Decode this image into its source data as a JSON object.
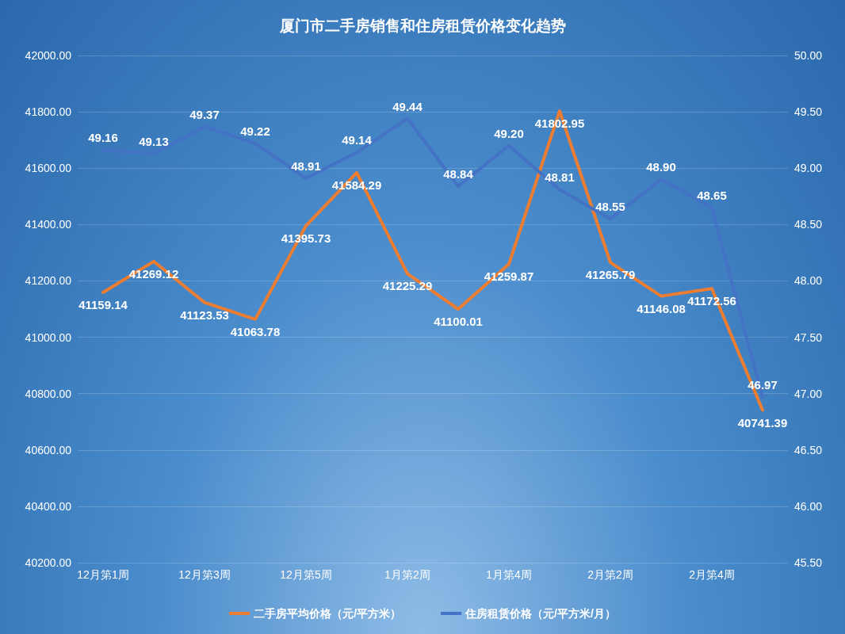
{
  "chart_data": {
    "type": "line",
    "title": "厦门市二手房销售和住房租赁价格变化趋势",
    "categories": [
      "12月第1周",
      null,
      "12月第3周",
      null,
      "12月第5周",
      null,
      "1月第2周",
      null,
      "1月第4周",
      null,
      "2月第2周",
      null,
      "2月第4周",
      null
    ],
    "series": [
      {
        "name": "二手房平均价格（元/平方米）",
        "color": "#ed7d31",
        "values": [
          41159.14,
          41269.12,
          41123.53,
          41063.78,
          41395.73,
          41584.29,
          41225.29,
          41100.01,
          41259.87,
          41802.95,
          41265.79,
          41146.08,
          41172.56,
          40741.39
        ],
        "value_labels": [
          "41159.14",
          "41269.12",
          "41123.53",
          "41063.78",
          "41395.73",
          "41584.29",
          "41225.29",
          "41100.01",
          "41259.87",
          "41802.95",
          "41265.79",
          "41146.08",
          "41172.56",
          "40741.39"
        ]
      },
      {
        "name": "住房租赁价格（元/平方米/月）",
        "color": "#4472c4",
        "axis": "y2",
        "values": [
          49.16,
          49.13,
          49.37,
          49.22,
          48.91,
          49.14,
          49.44,
          48.84,
          49.2,
          48.81,
          48.55,
          48.9,
          48.65,
          46.97
        ],
        "value_labels": [
          "49.16",
          "49.13",
          "49.37",
          "49.22",
          "48.91",
          "49.14",
          "49.44",
          "48.84",
          "49.20",
          "48.81",
          "48.55",
          "48.90",
          "48.65",
          "46.97"
        ]
      }
    ],
    "ylim": [
      40200,
      42000
    ],
    "yticks": [
      {
        "value": 40200,
        "label": "40200.00"
      },
      {
        "value": 40400,
        "label": "40400.00"
      },
      {
        "value": 40600,
        "label": "40600.00"
      },
      {
        "value": 40800,
        "label": "40800.00"
      },
      {
        "value": 41000,
        "label": "41000.00"
      },
      {
        "value": 41200,
        "label": "41200.00"
      },
      {
        "value": 41400,
        "label": "41400.00"
      },
      {
        "value": 41600,
        "label": "41600.00"
      },
      {
        "value": 41800,
        "label": "41800.00"
      },
      {
        "value": 42000,
        "label": "42000.00"
      }
    ],
    "y2lim": [
      45.5,
      50
    ],
    "y2ticks": [
      {
        "value": 45.5,
        "label": "45.50"
      },
      {
        "value": 46,
        "label": "46.00"
      },
      {
        "value": 46.5,
        "label": "46.50"
      },
      {
        "value": 47,
        "label": "47.00"
      },
      {
        "value": 47.5,
        "label": "47.50"
      },
      {
        "value": 48,
        "label": "48.00"
      },
      {
        "value": 48.5,
        "label": "48.50"
      },
      {
        "value": 49,
        "label": "49.00"
      },
      {
        "value": 49.5,
        "label": "49.50"
      },
      {
        "value": 50,
        "label": "50.00"
      }
    ],
    "grid": "y",
    "legend": "bottom",
    "marker": "none",
    "line_style": "solid"
  }
}
